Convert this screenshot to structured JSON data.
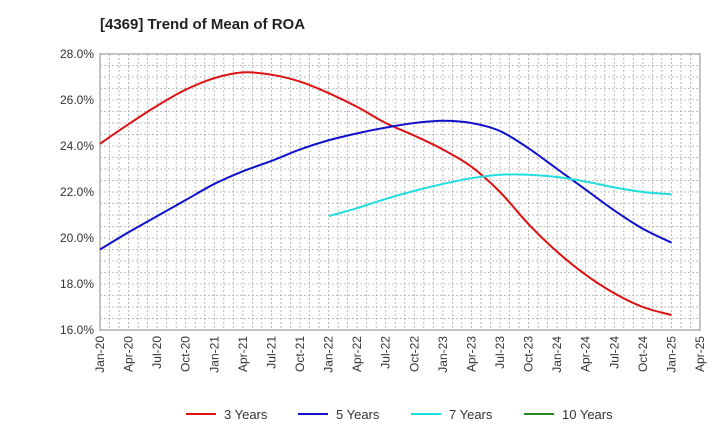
{
  "chart_data": {
    "type": "line",
    "title": "[4369]  Trend of Mean of ROA",
    "xlabel": "",
    "ylabel": "",
    "x_ticks": [
      "Jan-20",
      "Apr-20",
      "Jul-20",
      "Oct-20",
      "Jan-21",
      "Apr-21",
      "Jul-21",
      "Oct-21",
      "Jan-22",
      "Apr-22",
      "Jul-22",
      "Oct-22",
      "Jan-23",
      "Apr-23",
      "Jul-23",
      "Oct-23",
      "Jan-24",
      "Apr-24",
      "Jul-24",
      "Oct-24",
      "Jan-25",
      "Apr-25"
    ],
    "y_ticks": [
      "16.0%",
      "18.0%",
      "20.0%",
      "22.0%",
      "24.0%",
      "26.0%",
      "28.0%"
    ],
    "ylim": [
      16,
      28
    ],
    "grid": true,
    "legend_position": "bottom",
    "series": [
      {
        "name": "3 Years",
        "color": "#dd1111",
        "points": [
          [
            "Jan-20",
            24.1
          ],
          [
            "Apr-20",
            24.95
          ],
          [
            "Jul-20",
            25.75
          ],
          [
            "Oct-20",
            26.45
          ],
          [
            "Jan-21",
            26.95
          ],
          [
            "Apr-21",
            27.2
          ],
          [
            "Jul-21",
            27.1
          ],
          [
            "Oct-21",
            26.8
          ],
          [
            "Jan-22",
            26.3
          ],
          [
            "Apr-22",
            25.7
          ],
          [
            "Jul-22",
            25.0
          ],
          [
            "Oct-22",
            24.45
          ],
          [
            "Jan-23",
            23.85
          ],
          [
            "Apr-23",
            23.1
          ],
          [
            "Jul-23",
            22.0
          ],
          [
            "Oct-23",
            20.6
          ],
          [
            "Jan-24",
            19.4
          ],
          [
            "Apr-24",
            18.4
          ],
          [
            "Jul-24",
            17.6
          ],
          [
            "Oct-24",
            17.0
          ],
          [
            "Jan-25",
            16.65
          ]
        ]
      },
      {
        "name": "5 Years",
        "color": "#1111cc",
        "points": [
          [
            "Jan-20",
            19.5
          ],
          [
            "Apr-20",
            20.25
          ],
          [
            "Jul-20",
            20.95
          ],
          [
            "Oct-20",
            21.65
          ],
          [
            "Jan-21",
            22.35
          ],
          [
            "Apr-21",
            22.9
          ],
          [
            "Jul-21",
            23.35
          ],
          [
            "Oct-21",
            23.85
          ],
          [
            "Jan-22",
            24.25
          ],
          [
            "Apr-22",
            24.55
          ],
          [
            "Jul-22",
            24.8
          ],
          [
            "Oct-22",
            25.0
          ],
          [
            "Jan-23",
            25.1
          ],
          [
            "Apr-23",
            25.0
          ],
          [
            "Jul-23",
            24.65
          ],
          [
            "Oct-23",
            23.9
          ],
          [
            "Jan-24",
            23.0
          ],
          [
            "Apr-24",
            22.1
          ],
          [
            "Jul-24",
            21.2
          ],
          [
            "Oct-24",
            20.4
          ],
          [
            "Jan-25",
            19.8
          ]
        ]
      },
      {
        "name": "7 Years",
        "color": "#22dddd",
        "points": [
          [
            "Jan-22",
            20.95
          ],
          [
            "Apr-22",
            21.3
          ],
          [
            "Jul-22",
            21.7
          ],
          [
            "Oct-22",
            22.05
          ],
          [
            "Jan-23",
            22.35
          ],
          [
            "Apr-23",
            22.6
          ],
          [
            "Jul-23",
            22.75
          ],
          [
            "Oct-23",
            22.75
          ],
          [
            "Jan-24",
            22.65
          ],
          [
            "Apr-24",
            22.45
          ],
          [
            "Jul-24",
            22.2
          ],
          [
            "Oct-24",
            22.0
          ],
          [
            "Jan-25",
            21.9
          ]
        ]
      },
      {
        "name": "10 Years",
        "color": "#228822",
        "points": []
      }
    ]
  }
}
